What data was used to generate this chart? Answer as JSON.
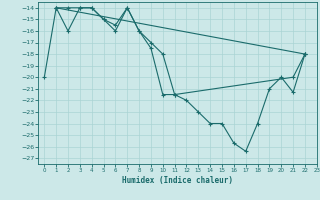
{
  "title": "",
  "xlabel": "Humidex (Indice chaleur)",
  "ylabel": "",
  "bg_color": "#cce8e8",
  "line_color": "#1a6b6b",
  "grid_color": "#aad4d4",
  "xlim": [
    -0.5,
    23
  ],
  "ylim": [
    -27.5,
    -13.5
  ],
  "xticks": [
    0,
    1,
    2,
    3,
    4,
    5,
    6,
    7,
    8,
    9,
    10,
    11,
    12,
    13,
    14,
    15,
    16,
    17,
    18,
    19,
    20,
    21,
    22,
    23
  ],
  "yticks": [
    -14,
    -15,
    -16,
    -17,
    -18,
    -19,
    -20,
    -21,
    -22,
    -23,
    -24,
    -25,
    -26,
    -27
  ],
  "line1_x": [
    0,
    1,
    2,
    3,
    4,
    5,
    6,
    7,
    8,
    9,
    10,
    11,
    21,
    22
  ],
  "line1_y": [
    -20,
    -14,
    -14,
    -14,
    -14,
    -15,
    -16,
    -14,
    -16,
    -17,
    -18,
    -21.5,
    -20,
    -18
  ],
  "line2_x": [
    1,
    2,
    3,
    4,
    5,
    6,
    7,
    8,
    9,
    10,
    11,
    12,
    13,
    14,
    15,
    16,
    17,
    18,
    19,
    20,
    21,
    22
  ],
  "line2_y": [
    -14,
    -16,
    -14,
    -14,
    -15,
    -15.5,
    -14,
    -16,
    -17.5,
    -21.5,
    -21.5,
    -22,
    -23,
    -24,
    -24,
    -25.7,
    -26.4,
    -24,
    -21,
    -20,
    -21.3,
    -18
  ],
  "line3_x": [
    1,
    22
  ],
  "line3_y": [
    -14,
    -18
  ]
}
